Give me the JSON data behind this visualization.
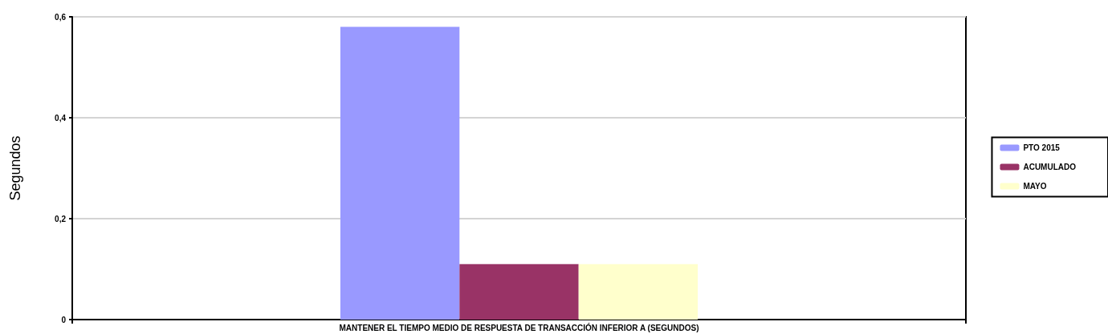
{
  "chart_data": {
    "type": "bar",
    "ylabel": "Segundos",
    "categories": [
      "MANTENER EL TIEMPO MEDIO DE RESPUESTA DE TRANSACCIÓN INFERIOR A (SEGUNDOS)"
    ],
    "series": [
      {
        "name": "PTO 2015",
        "color": "#9999ff",
        "values": [
          0.58
        ]
      },
      {
        "name": "ACUMULADO",
        "color": "#993366",
        "values": [
          0.11
        ]
      },
      {
        "name": "MAYO",
        "color": "#ffffcc",
        "values": [
          0.11
        ]
      }
    ],
    "ylim": [
      0,
      0.6
    ],
    "yticks": [
      {
        "value": 0,
        "label": "0"
      },
      {
        "value": 0.2,
        "label": "0,2"
      },
      {
        "value": 0.4,
        "label": "0,4"
      },
      {
        "value": 0.6,
        "label": "0,6"
      }
    ],
    "grid": "y",
    "legend": "right"
  }
}
